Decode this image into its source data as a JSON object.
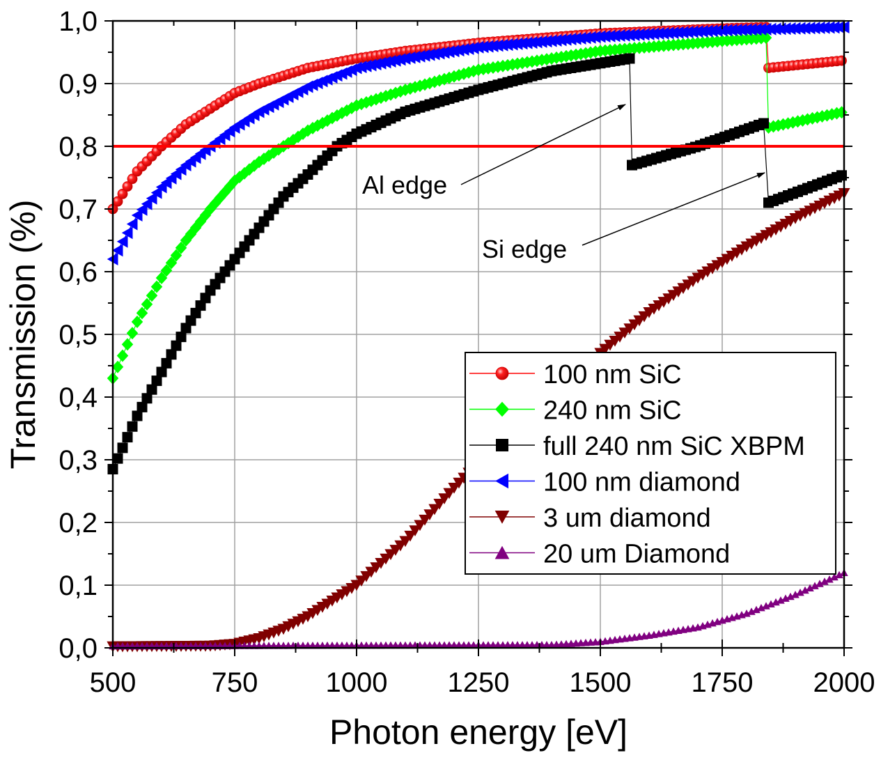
{
  "chart_data": {
    "type": "scatter",
    "xlabel": "Photon energy [eV]",
    "ylabel": "Transmission (%)",
    "xlim": [
      500,
      2000
    ],
    "ylim": [
      0.0,
      1.0
    ],
    "xticks": [
      "500",
      "750",
      "1000",
      "1250",
      "1500",
      "1750",
      "2000"
    ],
    "xtick_values": [
      500,
      750,
      1000,
      1250,
      1500,
      1750,
      2000
    ],
    "yticks": [
      "0,0",
      "0,1",
      "0,2",
      "0,3",
      "0,4",
      "0,5",
      "0,6",
      "0,7",
      "0,8",
      "0,9",
      "1,0"
    ],
    "ytick_values": [
      0,
      0.1,
      0.2,
      0.3,
      0.4,
      0.5,
      0.6,
      0.7,
      0.8,
      0.9,
      1.0
    ],
    "grid": true,
    "legend_position": "bottom-right",
    "reference_line": {
      "y": 0.8,
      "color": "#ff0000"
    },
    "annotations": [
      {
        "text": "Al edge",
        "arrow_to_energy": 1560
      },
      {
        "text": "Si edge",
        "arrow_to_energy": 1840
      }
    ],
    "series": [
      {
        "name": "100 nm SiC",
        "color": "#ff0000",
        "marker": "circle",
        "segments": [
          [
            [
              500,
              0.7
            ],
            [
              550,
              0.76
            ],
            [
              600,
              0.8
            ],
            [
              650,
              0.835
            ],
            [
              700,
              0.86
            ],
            [
              750,
              0.885
            ],
            [
              800,
              0.9
            ],
            [
              900,
              0.925
            ],
            [
              1000,
              0.94
            ],
            [
              1100,
              0.952
            ],
            [
              1250,
              0.965
            ],
            [
              1500,
              0.98
            ],
            [
              1750,
              0.988
            ],
            [
              1840,
              0.99
            ]
          ],
          [
            [
              1845,
              0.925
            ],
            [
              2000,
              0.937
            ]
          ]
        ]
      },
      {
        "name": "240 nm SiC",
        "color": "#00ff00",
        "marker": "diamond",
        "segments": [
          [
            [
              500,
              0.43
            ],
            [
              550,
              0.52
            ],
            [
              600,
              0.59
            ],
            [
              650,
              0.65
            ],
            [
              700,
              0.7
            ],
            [
              750,
              0.745
            ],
            [
              800,
              0.775
            ],
            [
              850,
              0.8
            ],
            [
              900,
              0.825
            ],
            [
              1000,
              0.865
            ],
            [
              1100,
              0.89
            ],
            [
              1250,
              0.922
            ],
            [
              1500,
              0.952
            ],
            [
              1750,
              0.968
            ],
            [
              1840,
              0.973
            ]
          ],
          [
            [
              1845,
              0.83
            ],
            [
              2000,
              0.855
            ]
          ]
        ]
      },
      {
        "name": "full 240 nm SiC XBPM",
        "color": "#000000",
        "marker": "square",
        "segments": [
          [
            [
              500,
              0.285
            ],
            [
              550,
              0.37
            ],
            [
              600,
              0.44
            ],
            [
              650,
              0.51
            ],
            [
              700,
              0.57
            ],
            [
              750,
              0.62
            ],
            [
              800,
              0.67
            ],
            [
              850,
              0.72
            ],
            [
              900,
              0.755
            ],
            [
              960,
              0.8
            ],
            [
              1000,
              0.82
            ],
            [
              1100,
              0.855
            ],
            [
              1250,
              0.89
            ],
            [
              1400,
              0.92
            ],
            [
              1560,
              0.94
            ]
          ],
          [
            [
              1565,
              0.77
            ],
            [
              1700,
              0.8
            ],
            [
              1840,
              0.838
            ]
          ],
          [
            [
              1845,
              0.71
            ],
            [
              2000,
              0.755
            ]
          ]
        ]
      },
      {
        "name": "100 nm diamond",
        "color": "#0000ff",
        "marker": "triangle-left",
        "segments": [
          [
            [
              500,
              0.62
            ],
            [
              550,
              0.69
            ],
            [
              600,
              0.735
            ],
            [
              650,
              0.77
            ],
            [
              700,
              0.8
            ],
            [
              750,
              0.83
            ],
            [
              800,
              0.855
            ],
            [
              900,
              0.895
            ],
            [
              1000,
              0.925
            ],
            [
              1100,
              0.94
            ],
            [
              1250,
              0.958
            ],
            [
              1500,
              0.975
            ],
            [
              1750,
              0.985
            ],
            [
              2000,
              0.99
            ]
          ]
        ]
      },
      {
        "name": "3 um diamond",
        "color": "#800000",
        "marker": "triangle-down",
        "segments": [
          [
            [
              500,
              0.002
            ],
            [
              700,
              0.003
            ],
            [
              750,
              0.006
            ],
            [
              800,
              0.015
            ],
            [
              850,
              0.03
            ],
            [
              900,
              0.05
            ],
            [
              1000,
              0.1
            ],
            [
              1100,
              0.17
            ],
            [
              1200,
              0.255
            ],
            [
              1300,
              0.335
            ],
            [
              1400,
              0.405
            ],
            [
              1500,
              0.47
            ],
            [
              1600,
              0.535
            ],
            [
              1700,
              0.59
            ],
            [
              1800,
              0.64
            ],
            [
              1900,
              0.685
            ],
            [
              2000,
              0.725
            ]
          ]
        ]
      },
      {
        "name": "20 um Diamond",
        "color": "#800080",
        "marker": "triangle-up",
        "segments": [
          [
            [
              500,
              0.003
            ],
            [
              1400,
              0.005
            ],
            [
              1500,
              0.01
            ],
            [
              1600,
              0.02
            ],
            [
              1700,
              0.033
            ],
            [
              1800,
              0.055
            ],
            [
              1900,
              0.085
            ],
            [
              2000,
              0.12
            ]
          ]
        ]
      }
    ]
  }
}
